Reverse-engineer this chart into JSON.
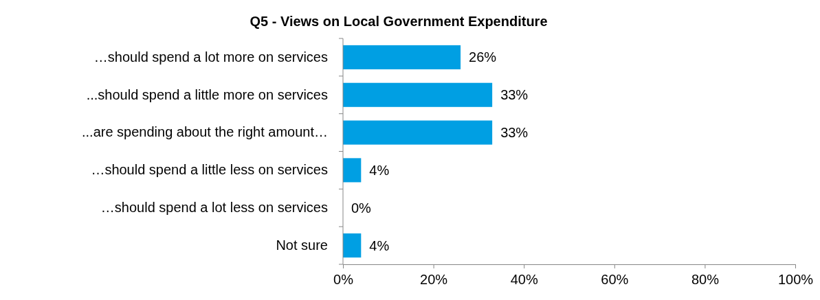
{
  "chart_data": {
    "type": "bar",
    "orientation": "horizontal",
    "title": "Q5 - Views on Local Government Expenditure",
    "categories": [
      "…should spend a lot more on services",
      "...should spend a little more on services",
      "...are spending about the right amount…",
      "…should spend a little less on services",
      "…should spend a lot less on services",
      "Not sure"
    ],
    "values": [
      26,
      33,
      33,
      4,
      0,
      4
    ],
    "value_labels": [
      "26%",
      "33%",
      "33%",
      "4%",
      "0%",
      "4%"
    ],
    "color": "#009fe3",
    "xlim": [
      0,
      100
    ],
    "xticks": [
      {
        "value": 0,
        "label": "0%"
      },
      {
        "value": 20,
        "label": "20%"
      },
      {
        "value": 40,
        "label": "40%"
      },
      {
        "value": 60,
        "label": "60%"
      },
      {
        "value": 80,
        "label": "80%"
      },
      {
        "value": 100,
        "label": "100%"
      }
    ],
    "grid": false
  }
}
